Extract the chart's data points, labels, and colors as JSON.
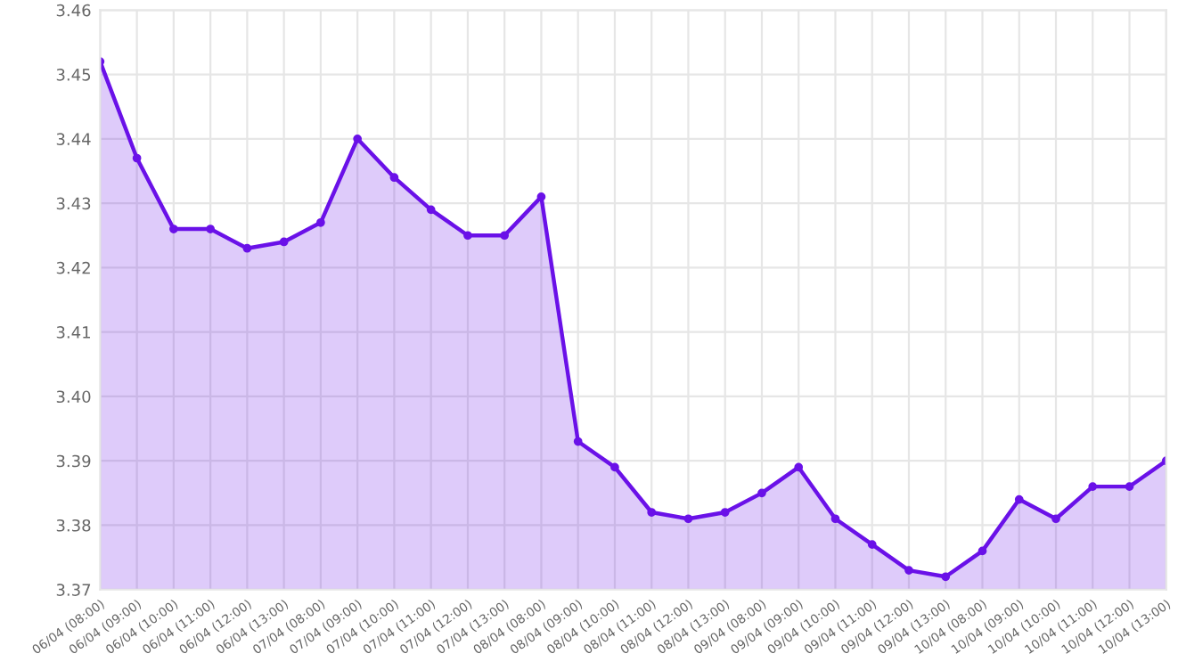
{
  "chart_data": {
    "type": "area",
    "categories": [
      "06/04 (08:00)",
      "06/04 (09:00)",
      "06/04 (10:00)",
      "06/04 (11:00)",
      "06/04 (12:00)",
      "06/04 (13:00)",
      "07/04 (08:00)",
      "07/04 (09:00)",
      "07/04 (10:00)",
      "07/04 (11:00)",
      "07/04 (12:00)",
      "07/04 (13:00)",
      "08/04 (08:00)",
      "08/04 (09:00)",
      "08/04 (10:00)",
      "08/04 (11:00)",
      "08/04 (12:00)",
      "08/04 (13:00)",
      "09/04 (08:00)",
      "09/04 (09:00)",
      "09/04 (10:00)",
      "09/04 (11:00)",
      "09/04 (12:00)",
      "09/04 (13:00)",
      "10/04 (08:00)",
      "10/04 (09:00)",
      "10/04 (10:00)",
      "10/04 (11:00)",
      "10/04 (12:00)",
      "10/04 (13:00)"
    ],
    "series": [
      {
        "color": "#6a11e8",
        "values": [
          3.452,
          3.437,
          3.426,
          3.426,
          3.423,
          3.424,
          3.427,
          3.44,
          3.434,
          3.429,
          3.425,
          3.425,
          3.431,
          3.393,
          3.389,
          3.382,
          3.381,
          3.382,
          3.385,
          3.389,
          3.381,
          3.377,
          3.373,
          3.372,
          3.376,
          3.384,
          3.381,
          3.386,
          3.386,
          3.39
        ]
      }
    ],
    "ylim": [
      3.37,
      3.46
    ],
    "yticks": [
      3.37,
      3.38,
      3.39,
      {
        "value": 3.4,
        "label": "3.40"
      },
      3.41,
      3.42,
      3.43,
      3.44,
      3.45,
      3.46
    ],
    "grid": true,
    "marker": "circle",
    "line_style": "solid"
  }
}
